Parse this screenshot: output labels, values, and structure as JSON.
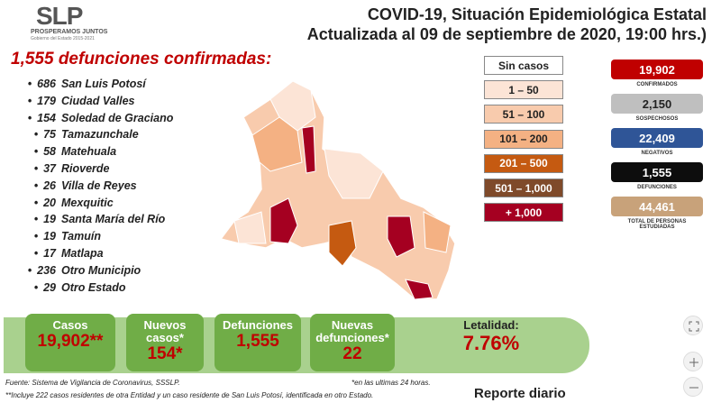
{
  "logo": {
    "brand": "SLP",
    "tagline": "PROSPERAMOS JUNTOS",
    "subtag": "Gobierno del Estado 2015-2021"
  },
  "header": {
    "title": "COVID-19, Situación Epidemiológica Estatal",
    "subtitle": "Actualizada al 09 de septiembre de 2020, 19:00 hrs.)"
  },
  "deaths": {
    "title": "1,555 defunciones confirmadas:",
    "items": [
      {
        "count": "686",
        "place": "San Luis Potosí"
      },
      {
        "count": "179",
        "place": "Ciudad Valles"
      },
      {
        "count": "154",
        "place": "Soledad de Graciano"
      },
      {
        "count": "75",
        "place": "Tamazunchale"
      },
      {
        "count": "58",
        "place": "Matehuala"
      },
      {
        "count": "37",
        "place": "Rioverde"
      },
      {
        "count": "26",
        "place": "Villa de Reyes"
      },
      {
        "count": "20",
        "place": "Mexquitic"
      },
      {
        "count": "19",
        "place": "Santa María del Río"
      },
      {
        "count": "19",
        "place": "Tamuín"
      },
      {
        "count": "17",
        "place": "Matlapa"
      },
      {
        "count": "236",
        "place": "Otro Municipio"
      },
      {
        "count": "29",
        "place": "Otro Estado"
      }
    ]
  },
  "legend": [
    {
      "label": "Sin casos",
      "color": "#ffffff"
    },
    {
      "label": "1 – 50",
      "color": "#fce4d6"
    },
    {
      "label": "51 – 100",
      "color": "#f8cbad"
    },
    {
      "label": "101 – 200",
      "color": "#f4b183"
    },
    {
      "label": "201 – 500",
      "color": "#c55a11"
    },
    {
      "label": "501 – 1,000",
      "color": "#7f4a2a"
    },
    {
      "label": "+ 1,000",
      "color": "#a50021"
    }
  ],
  "stats": [
    {
      "value": "19,902",
      "label": "CONFIRMADOS",
      "color": "#c00000"
    },
    {
      "value": "2,150",
      "label": "SOSPECHOSOS",
      "color": "#bfbfbf"
    },
    {
      "value": "22,409",
      "label": "NEGATIVOS",
      "color": "#2f5597"
    },
    {
      "value": "1,555",
      "label": "DEFUNCIONES",
      "color": "#0d0d0d"
    },
    {
      "value": "44,461",
      "label": "TOTAL DE PERSONAS ESTUDIADAS",
      "color": "#c8a27a"
    }
  ],
  "summary": [
    {
      "label": "Casos",
      "value": "19,902**"
    },
    {
      "label": "Nuevos casos*",
      "value": "154*"
    },
    {
      "label": "Defunciones",
      "value": "1,555"
    },
    {
      "label": "Nuevas defunciones*",
      "value": "22"
    },
    {
      "label": "Letalidad:",
      "value": "7.76%"
    }
  ],
  "footnotes": {
    "source": "Fuente: Sistema de Vigilancia de Coronavirus, SSSLP.",
    "asterisk": "*en las ultimas 24 horas.",
    "double": "**Incluye 222 casos residentes de otra Entidad y un caso residente de San Luis Potosí, identificada en otro Estado.",
    "report": "Reporte diario"
  }
}
